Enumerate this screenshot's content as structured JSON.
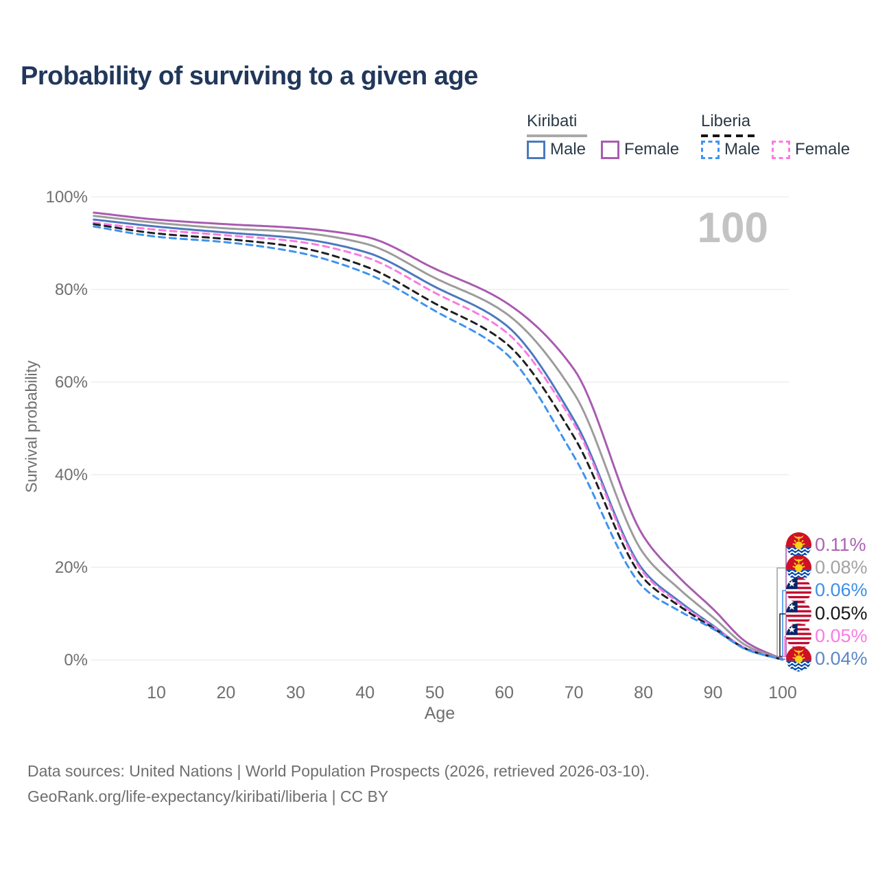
{
  "header": {
    "title": "Probability of surviving to a given age"
  },
  "legend": {
    "groups": [
      {
        "name": "Kiribati",
        "line_style": "solid",
        "underline_color": "#a9a9a9",
        "items": [
          {
            "label": "Male",
            "color": "#4a79bd"
          },
          {
            "label": "Female",
            "color": "#a85cb0"
          }
        ]
      },
      {
        "name": "Liberia",
        "line_style": "dashed",
        "underline_color": "#141414",
        "items": [
          {
            "label": "Male",
            "color": "#3e93f0"
          },
          {
            "label": "Female",
            "color": "#fb7ae3"
          }
        ]
      }
    ]
  },
  "chart_data": {
    "type": "line",
    "title": "Probability of surviving to a given age",
    "xlabel": "Age",
    "ylabel": "Survival probability",
    "xlim": [
      1,
      100
    ],
    "ylim": [
      0,
      100
    ],
    "grid": "horizontal",
    "legend_position": "top-right",
    "watermark": "100",
    "x_ticks": [
      10,
      20,
      30,
      40,
      50,
      60,
      70,
      80,
      90,
      100
    ],
    "y_ticks": [
      {
        "value": 0,
        "label": "0%"
      },
      {
        "value": 20,
        "label": "20%"
      },
      {
        "value": 40,
        "label": "40%"
      },
      {
        "value": 60,
        "label": "60%"
      },
      {
        "value": 80,
        "label": "80%"
      },
      {
        "value": 100,
        "label": "100%"
      }
    ],
    "ages": [
      1,
      10,
      20,
      30,
      40,
      50,
      60,
      70,
      80,
      85,
      90,
      95,
      100
    ],
    "series": [
      {
        "name": "Kiribati Female",
        "country": "Kiribati",
        "sex": "Female",
        "style": "solid",
        "color": "#a85cb0",
        "values": [
          96.6,
          95.1,
          94.1,
          93.3,
          91.4,
          84.5,
          77.4,
          62.8,
          26.7,
          18.0,
          11.0,
          3.6,
          0.11
        ],
        "end_label": "0.11%"
      },
      {
        "name": "Kiribati Both sexes",
        "country": "Kiribati",
        "sex": "Both",
        "style": "solid",
        "color": "#9c9c9c",
        "values": [
          95.9,
          94.4,
          93.2,
          92.4,
          89.9,
          82.5,
          75.1,
          57.6,
          23.0,
          15.5,
          9.2,
          2.9,
          0.08
        ],
        "end_label": "0.08%"
      },
      {
        "name": "Kiribati Male",
        "country": "Kiribati",
        "sex": "Male",
        "style": "solid",
        "color": "#4a79bd",
        "values": [
          95.1,
          93.6,
          92.3,
          91.1,
          88.1,
          80.6,
          72.6,
          51.9,
          19.3,
          12.8,
          7.4,
          2.2,
          0.04
        ],
        "end_label": "0.04%"
      },
      {
        "name": "Liberia Female",
        "country": "Liberia",
        "sex": "Female",
        "style": "dashed",
        "color": "#fb7ae3",
        "values": [
          94.4,
          92.9,
          91.7,
          90.4,
          87.0,
          79.3,
          71.1,
          51.0,
          18.8,
          12.4,
          7.2,
          2.3,
          0.05
        ],
        "end_label": "0.05%"
      },
      {
        "name": "Liberia Both sexes",
        "country": "Liberia",
        "sex": "Both",
        "style": "dashed",
        "color": "#1f1f1f",
        "values": [
          94.1,
          92.1,
          90.9,
          89.2,
          85.0,
          77.0,
          68.7,
          48.2,
          17.6,
          11.8,
          6.9,
          2.2,
          0.05
        ],
        "end_label": "0.05%"
      },
      {
        "name": "Liberia Male",
        "country": "Liberia",
        "sex": "Male",
        "style": "dashed",
        "color": "#3e93f0",
        "values": [
          93.6,
          91.4,
          90.2,
          88.1,
          83.6,
          75.4,
          66.5,
          44.0,
          15.6,
          10.7,
          6.7,
          2.1,
          0.06
        ],
        "end_label": "0.06%"
      }
    ],
    "end_labels": [
      {
        "text": "0.11%",
        "series": "Kiribati Female",
        "flag": "kiribati-flag-icon",
        "text_color": "#ab63b1",
        "line_color": "#a85cb0"
      },
      {
        "text": "0.08%",
        "series": "Kiribati Both sexes",
        "flag": "kiribati-flag-icon",
        "text_color": "#a3a3a3",
        "line_color": "#a3a3a3"
      },
      {
        "text": "0.06%",
        "series": "Liberia Male",
        "flag": "liberia-flag-icon",
        "text_color": "#3e8ee9",
        "line_color": "#3e93f0"
      },
      {
        "text": "0.05%",
        "series": "Liberia Both sexes",
        "flag": "liberia-flag-icon",
        "text_color": "#161616",
        "line_color": "#1f1f1f"
      },
      {
        "text": "0.05%",
        "series": "Liberia Female",
        "flag": "liberia-flag-icon",
        "text_color": "#fb7ae3",
        "line_color": "#fb7ae3"
      },
      {
        "text": "0.04%",
        "series": "Kiribati Male",
        "flag": "kiribati-flag-icon",
        "text_color": "#5c86c6",
        "line_color": "#4a79bd"
      }
    ]
  },
  "footer": {
    "line1": "Data sources: United Nations | World Population Prospects (2026, retrieved 2026-03-10).",
    "line2": "GeoRank.org/life-expectancy/kiribati/liberia | CC BY"
  }
}
